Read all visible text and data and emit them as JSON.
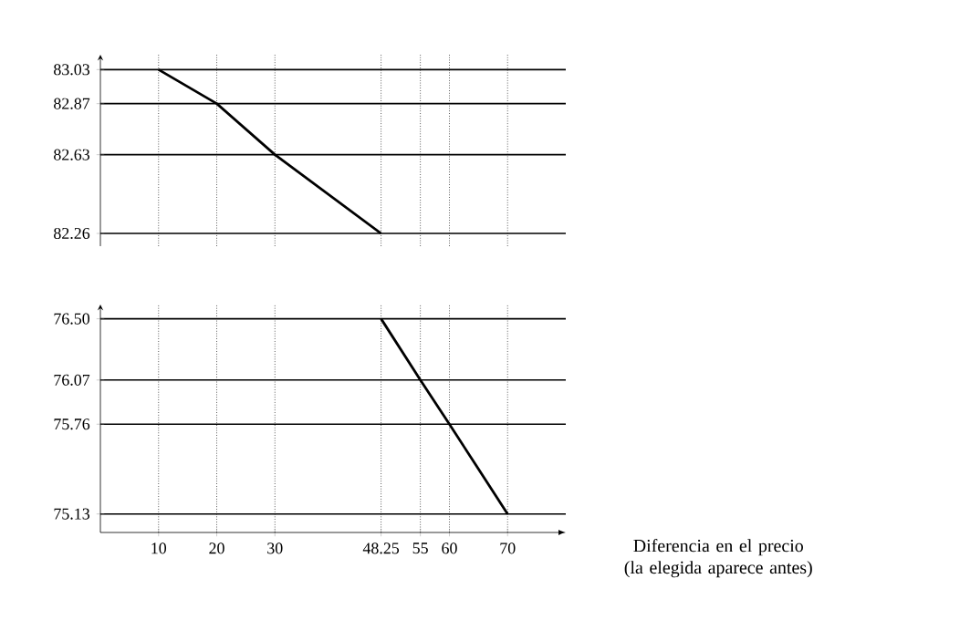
{
  "chart_data": [
    {
      "type": "line",
      "x": [
        10,
        20,
        30,
        48.25
      ],
      "values": [
        83.03,
        82.87,
        82.63,
        82.26
      ],
      "color": "#000000",
      "marker": "none",
      "line_style": "solid",
      "xlim": [
        0,
        80
      ],
      "xticks": [
        10,
        20,
        30,
        48.25,
        55,
        60,
        70
      ],
      "ylim": [
        82.2,
        83.1
      ],
      "yticks": [
        83.03,
        82.87,
        82.63,
        82.26
      ],
      "grid": true,
      "tick_labels": "y"
    },
    {
      "type": "line",
      "x": [
        48.25,
        55,
        60,
        70
      ],
      "values": [
        76.5,
        76.07,
        75.76,
        75.13
      ],
      "color": "#000000",
      "marker": "none",
      "line_style": "solid",
      "xlim": [
        0,
        80
      ],
      "xticks": [
        10,
        20,
        30,
        48.25,
        55,
        60,
        70
      ],
      "ylim": [
        75.0,
        76.6
      ],
      "yticks": [
        {
          "value": 76.5,
          "label": "76.50"
        },
        76.07,
        75.76,
        75.13
      ],
      "grid": true,
      "xlabel": "Diferencia en el precio (la elegida aparece antes)"
    }
  ]
}
